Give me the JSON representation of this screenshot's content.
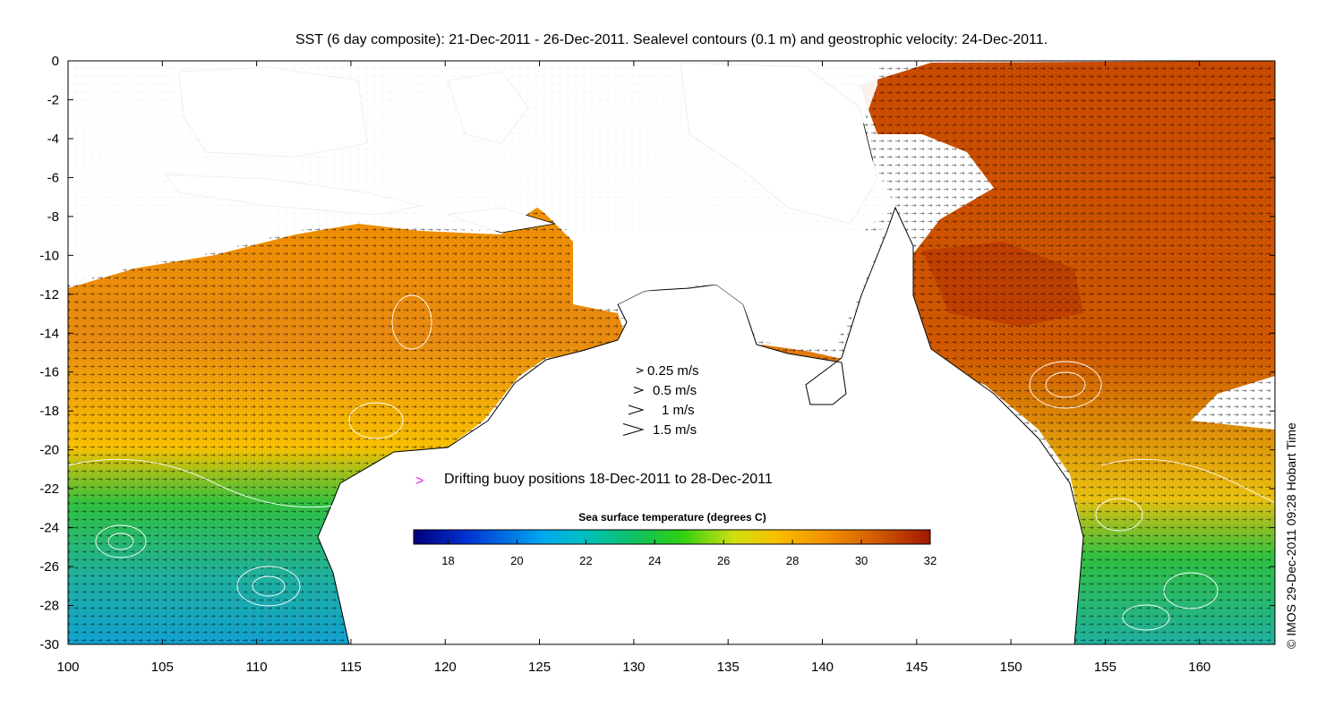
{
  "title": "SST (6 day composite): 21-Dec-2011 - 26-Dec-2011. Sealevel contours (0.1 m) and geostrophic velocity: 24-Dec-2011.",
  "credit": "© IMOS 29-Dec-2011 09:28 Hobart Time",
  "axes": {
    "x_ticks": [
      "100",
      "105",
      "110",
      "115",
      "120",
      "125",
      "130",
      "135",
      "140",
      "145",
      "150",
      "155",
      "160"
    ],
    "y_ticks": [
      "0",
      "-2",
      "-4",
      "-6",
      "-8",
      "-10",
      "-12",
      "-14",
      "-16",
      "-18",
      "-20",
      "-22",
      "-24",
      "-26",
      "-28",
      "-30"
    ],
    "x_range": [
      100,
      164
    ],
    "y_range": [
      -30,
      0
    ]
  },
  "velocity_legend": [
    {
      "label": "0.25 m/s",
      "speed": 0.25
    },
    {
      "label": "0.5 m/s",
      "speed": 0.5
    },
    {
      "label": "1 m/s",
      "speed": 1
    },
    {
      "label": "1.5 m/s",
      "speed": 1.5
    }
  ],
  "buoy_legend": {
    "label": "Drifting buoy positions 18-Dec-2011 to 28-Dec-2011",
    "marker": ">",
    "color": "#e020e0"
  },
  "colorbar": {
    "title": "Sea surface temperature (degrees C)",
    "ticks": [
      "18",
      "20",
      "22",
      "24",
      "26",
      "28",
      "30",
      "32"
    ],
    "range": [
      17,
      32
    ],
    "colors": [
      "#00007a",
      "#0030d0",
      "#00a8f0",
      "#00c0c0",
      "#10c060",
      "#30d010",
      "#d0e010",
      "#f8c000",
      "#f09000",
      "#d05800",
      "#a01800"
    ]
  }
}
